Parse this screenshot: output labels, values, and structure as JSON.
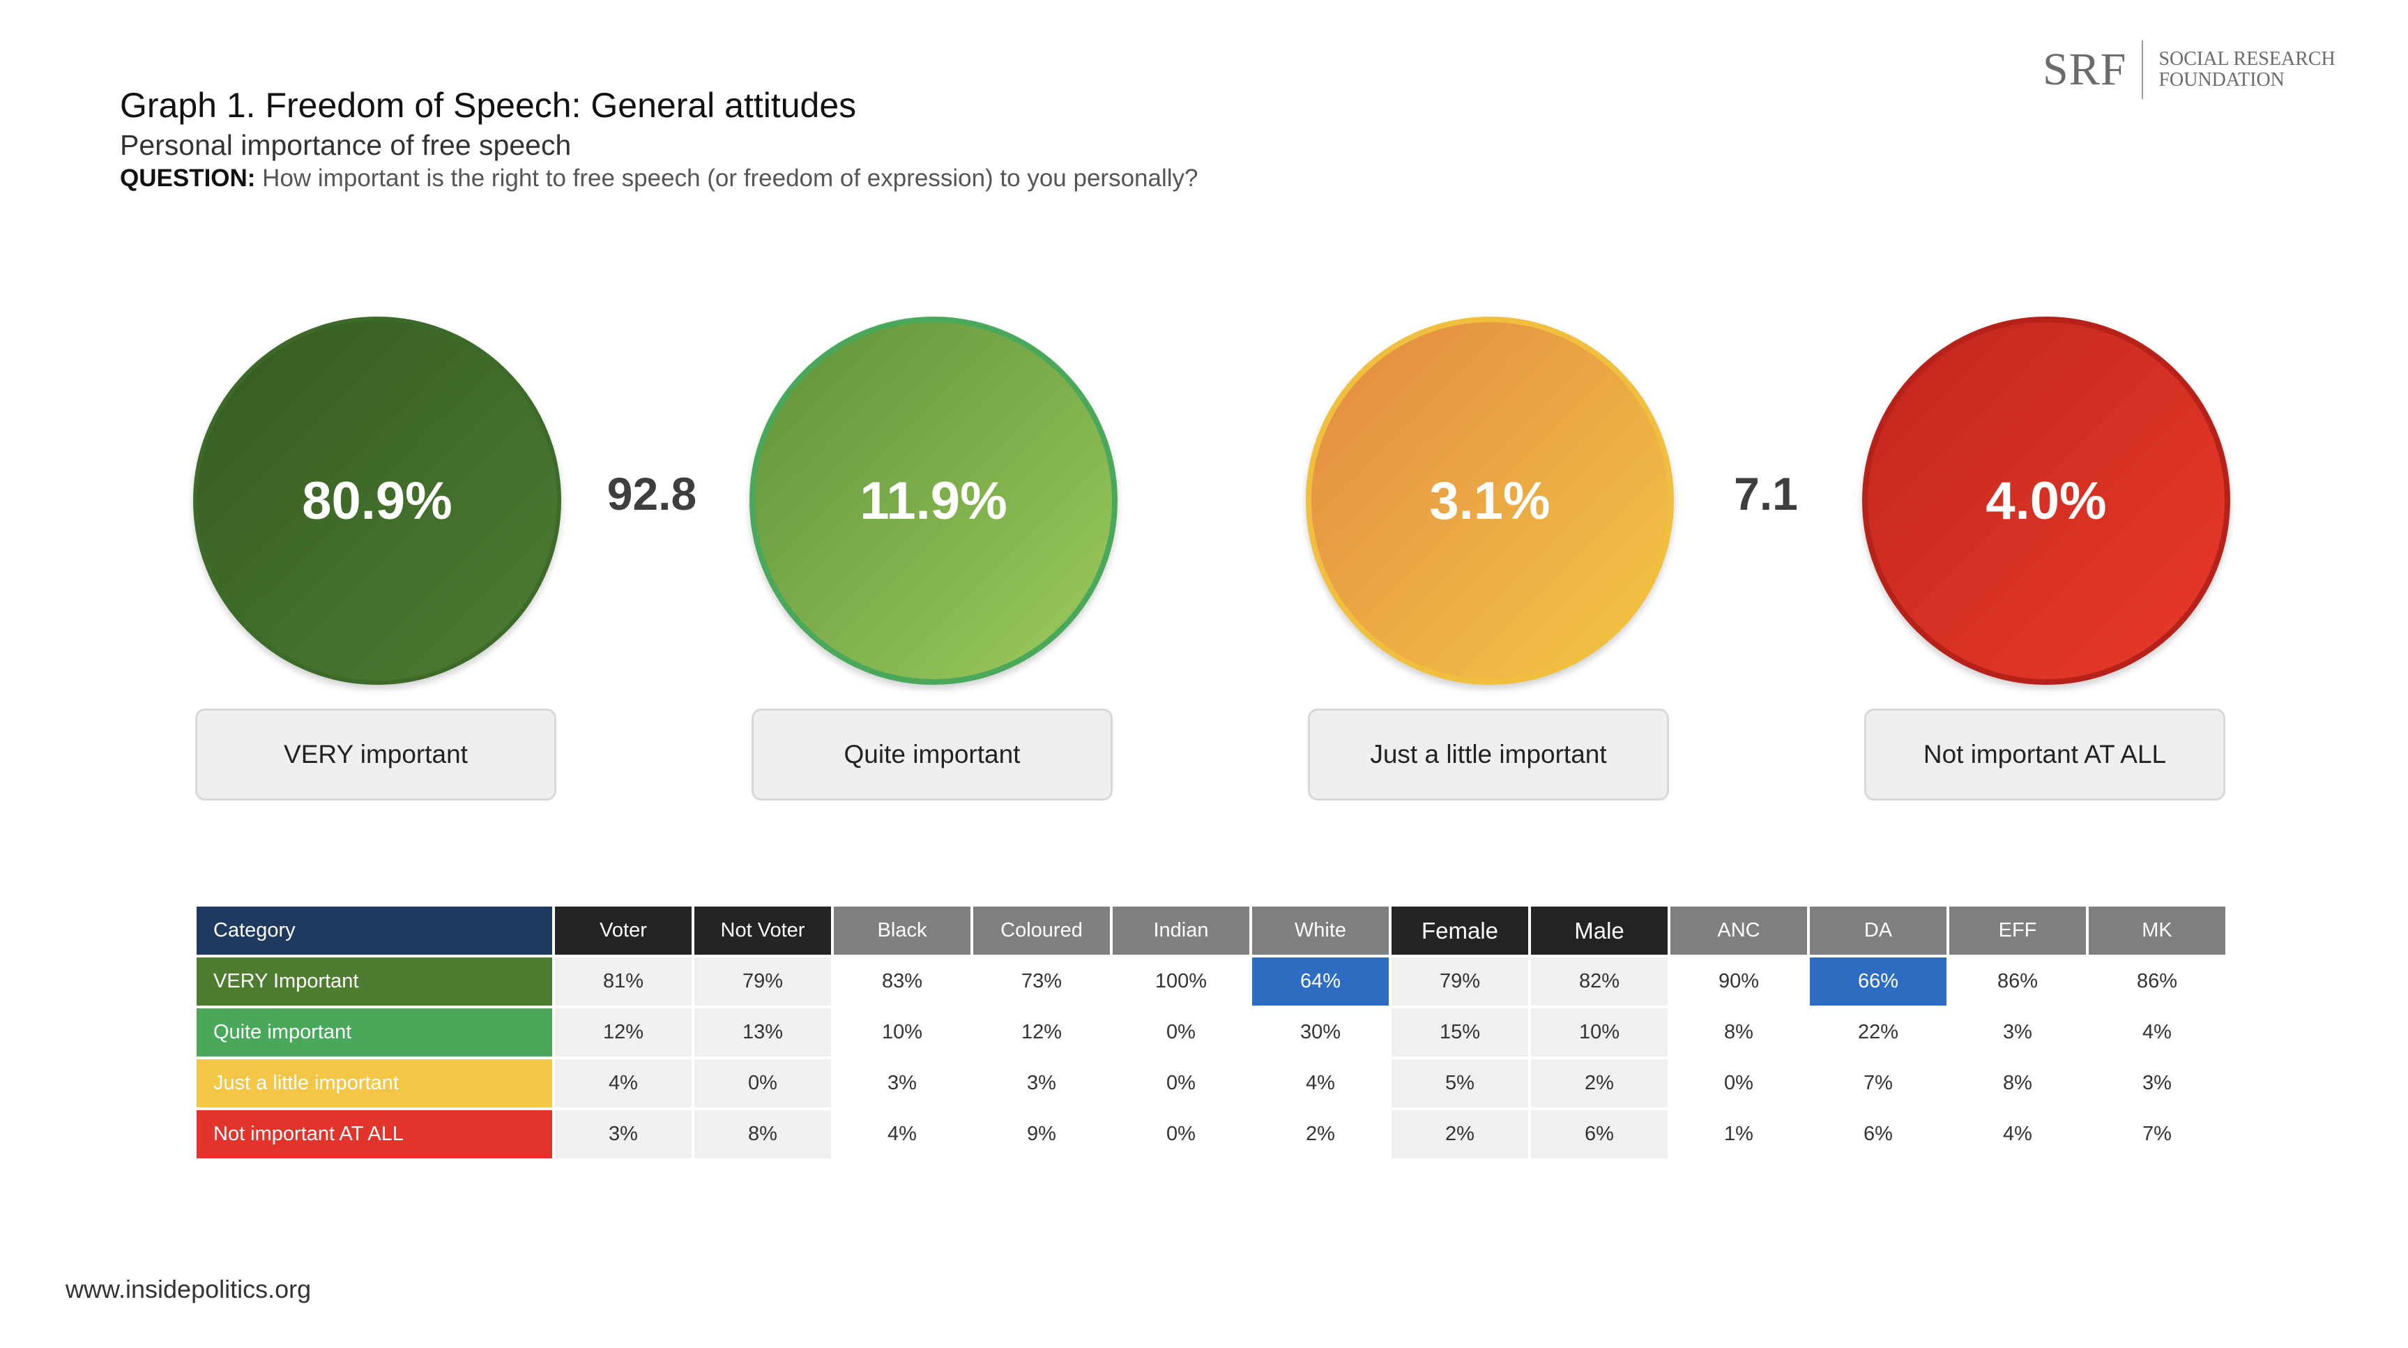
{
  "header": {
    "title_prefix": "Graph 1. Freedom of Speech",
    "title_suffix": ": General attitudes",
    "subtitle": "Personal importance of free speech",
    "question_label": "QUESTION:",
    "question_text": " How important is the right to free speech (or freedom of expression) to you personally?"
  },
  "logo": {
    "mark": "SRF",
    "line1": "SOCIAL RESEARCH",
    "line2": "FOUNDATION"
  },
  "footer": {
    "url": "www.insidepolitics.org"
  },
  "colors": {
    "very": "#4e7d32",
    "quite": "#4aa85a",
    "little": "#f3c646",
    "not": "#e3342b",
    "category_header": "#1f3a5f",
    "highlight": "#2e6cc2"
  },
  "chart_data": [
    {
      "type": "bubble",
      "categories": [
        "VERY important",
        "Quite important",
        "Just a little important",
        "Not important AT ALL"
      ],
      "values": [
        80.9,
        11.9,
        3.1,
        4.0
      ],
      "value_labels": [
        "80.9%",
        "11.9%",
        "3.1%",
        "4.0%"
      ],
      "combined_totals": [
        {
          "members": [
            "VERY important",
            "Quite important"
          ],
          "value": 92.8,
          "label": "92.8"
        },
        {
          "members": [
            "Just a little important",
            "Not important AT ALL"
          ],
          "value": 7.1,
          "label": "7.1"
        }
      ]
    },
    {
      "type": "table",
      "corner_label": "Category",
      "columns": [
        "Voter",
        "Not Voter",
        "Black",
        "Coloured",
        "Indian",
        "White",
        "Female",
        "Male",
        "ANC",
        "DA",
        "EFF",
        "MK"
      ],
      "column_styles": [
        "dark",
        "dark",
        "grey",
        "grey",
        "grey",
        "grey",
        "dark-big",
        "dark-big",
        "grey",
        "grey",
        "grey",
        "grey"
      ],
      "rows": [
        {
          "label": "VERY Important",
          "values": [
            "81%",
            "79%",
            "83%",
            "73%",
            "100%",
            "64%",
            "79%",
            "82%",
            "90%",
            "66%",
            "86%",
            "86%"
          ]
        },
        {
          "label": "Quite important",
          "values": [
            "12%",
            "13%",
            "10%",
            "12%",
            "0%",
            "30%",
            "15%",
            "10%",
            "8%",
            "22%",
            "3%",
            "4%"
          ]
        },
        {
          "label": "Just a little important",
          "values": [
            "4%",
            "0%",
            "3%",
            "3%",
            "0%",
            "4%",
            "5%",
            "2%",
            "0%",
            "7%",
            "8%",
            "3%"
          ]
        },
        {
          "label": "Not important AT ALL",
          "values": [
            "3%",
            "8%",
            "4%",
            "9%",
            "0%",
            "2%",
            "2%",
            "6%",
            "1%",
            "6%",
            "4%",
            "7%"
          ]
        }
      ],
      "highlighted_cells": [
        {
          "row": 0,
          "column": "White"
        },
        {
          "row": 0,
          "column": "DA"
        }
      ]
    }
  ]
}
